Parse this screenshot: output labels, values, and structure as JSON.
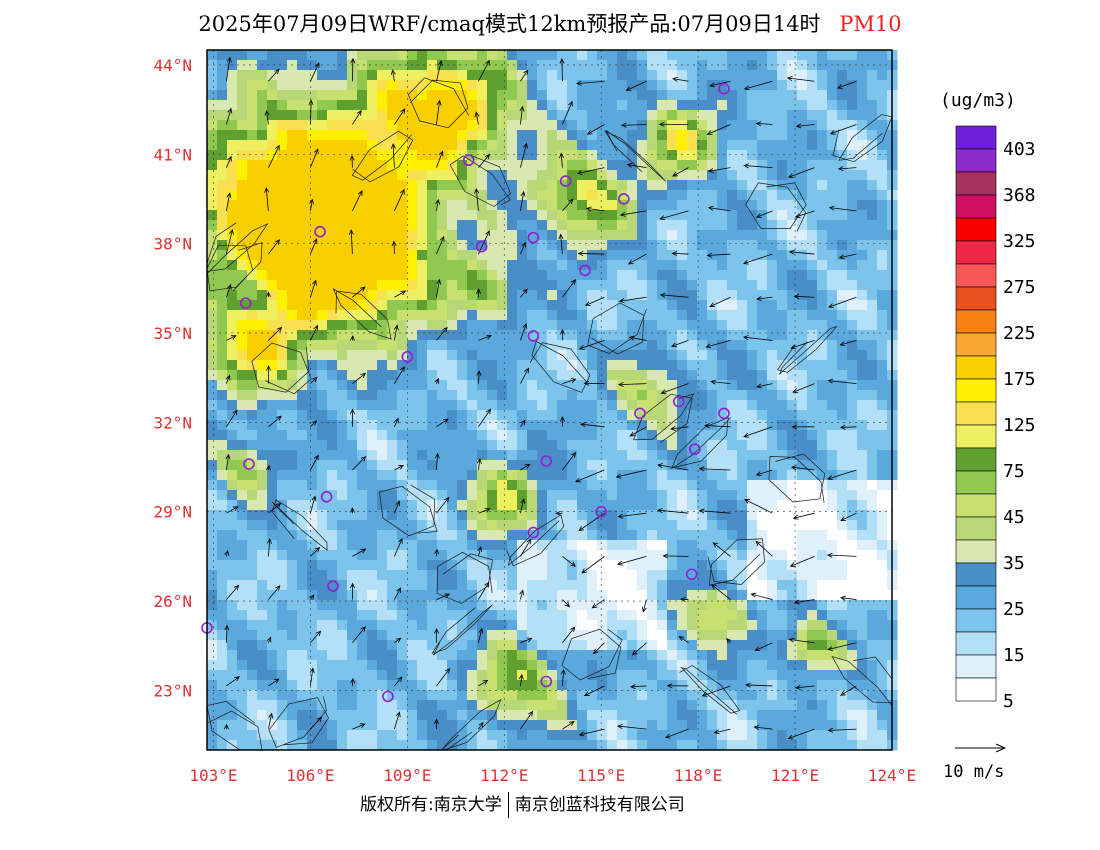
{
  "title": {
    "main": "2025年07月09日WRF/cmaq模式12km预报产品:07月09日14时",
    "pollutant": "PM10"
  },
  "map": {
    "lat_labels": [
      "44°N",
      "41°N",
      "38°N",
      "35°N",
      "32°N",
      "29°N",
      "26°N",
      "23°N"
    ],
    "lon_labels": [
      "103°E",
      "106°E",
      "109°E",
      "112°E",
      "115°E",
      "118°E",
      "121°E",
      "124°E"
    ],
    "lat_range": [
      21,
      44.5
    ],
    "lon_range": [
      102.8,
      124
    ],
    "label_color": "#e03030"
  },
  "legend": {
    "unit": "(ug/m3)",
    "colors": [
      "#ffffff",
      "#dff0fb",
      "#b3e0f6",
      "#7cc4ec",
      "#5aa8dc",
      "#4a8ec8",
      "#d8e8b0",
      "#b8d878",
      "#c8e070",
      "#90c850",
      "#60a030",
      "#eef060",
      "#f8e050",
      "#fff000",
      "#f8d000",
      "#f8a830",
      "#f88010",
      "#e85020",
      "#f85858",
      "#f02848",
      "#f80000",
      "#d01060",
      "#a83060",
      "#8c2cc8",
      "#7020d8"
    ],
    "labels": [
      "403",
      "368",
      "325",
      "275",
      "225",
      "175",
      "125",
      "75",
      "45",
      "35",
      "25",
      "15",
      "5"
    ],
    "wind_label": "10 m/s"
  },
  "stations": [
    {
      "lon": 118.8,
      "lat": 43.2
    },
    {
      "lon": 110.9,
      "lat": 40.8
    },
    {
      "lon": 113.9,
      "lat": 40.1
    },
    {
      "lon": 115.7,
      "lat": 39.5
    },
    {
      "lon": 106.3,
      "lat": 38.4
    },
    {
      "lon": 111.3,
      "lat": 37.9
    },
    {
      "lon": 112.9,
      "lat": 38.2
    },
    {
      "lon": 114.5,
      "lat": 37.1
    },
    {
      "lon": 104.0,
      "lat": 36.0
    },
    {
      "lon": 109.0,
      "lat": 34.2
    },
    {
      "lon": 112.9,
      "lat": 34.9
    },
    {
      "lon": 116.2,
      "lat": 32.3
    },
    {
      "lon": 117.4,
      "lat": 32.7
    },
    {
      "lon": 118.8,
      "lat": 32.3
    },
    {
      "lon": 117.9,
      "lat": 31.1
    },
    {
      "lon": 104.1,
      "lat": 30.6
    },
    {
      "lon": 113.3,
      "lat": 30.7
    },
    {
      "lon": 106.5,
      "lat": 29.5
    },
    {
      "lon": 115.0,
      "lat": 29.0
    },
    {
      "lon": 112.9,
      "lat": 28.3
    },
    {
      "lon": 106.7,
      "lat": 26.5
    },
    {
      "lon": 117.8,
      "lat": 26.9
    },
    {
      "lon": 102.8,
      "lat": 25.1
    },
    {
      "lon": 108.4,
      "lat": 22.8
    },
    {
      "lon": 113.3,
      "lat": 23.3
    }
  ],
  "footer": {
    "left": "版权所有:南京大学",
    "right": "南京创蓝科技有限公司"
  }
}
